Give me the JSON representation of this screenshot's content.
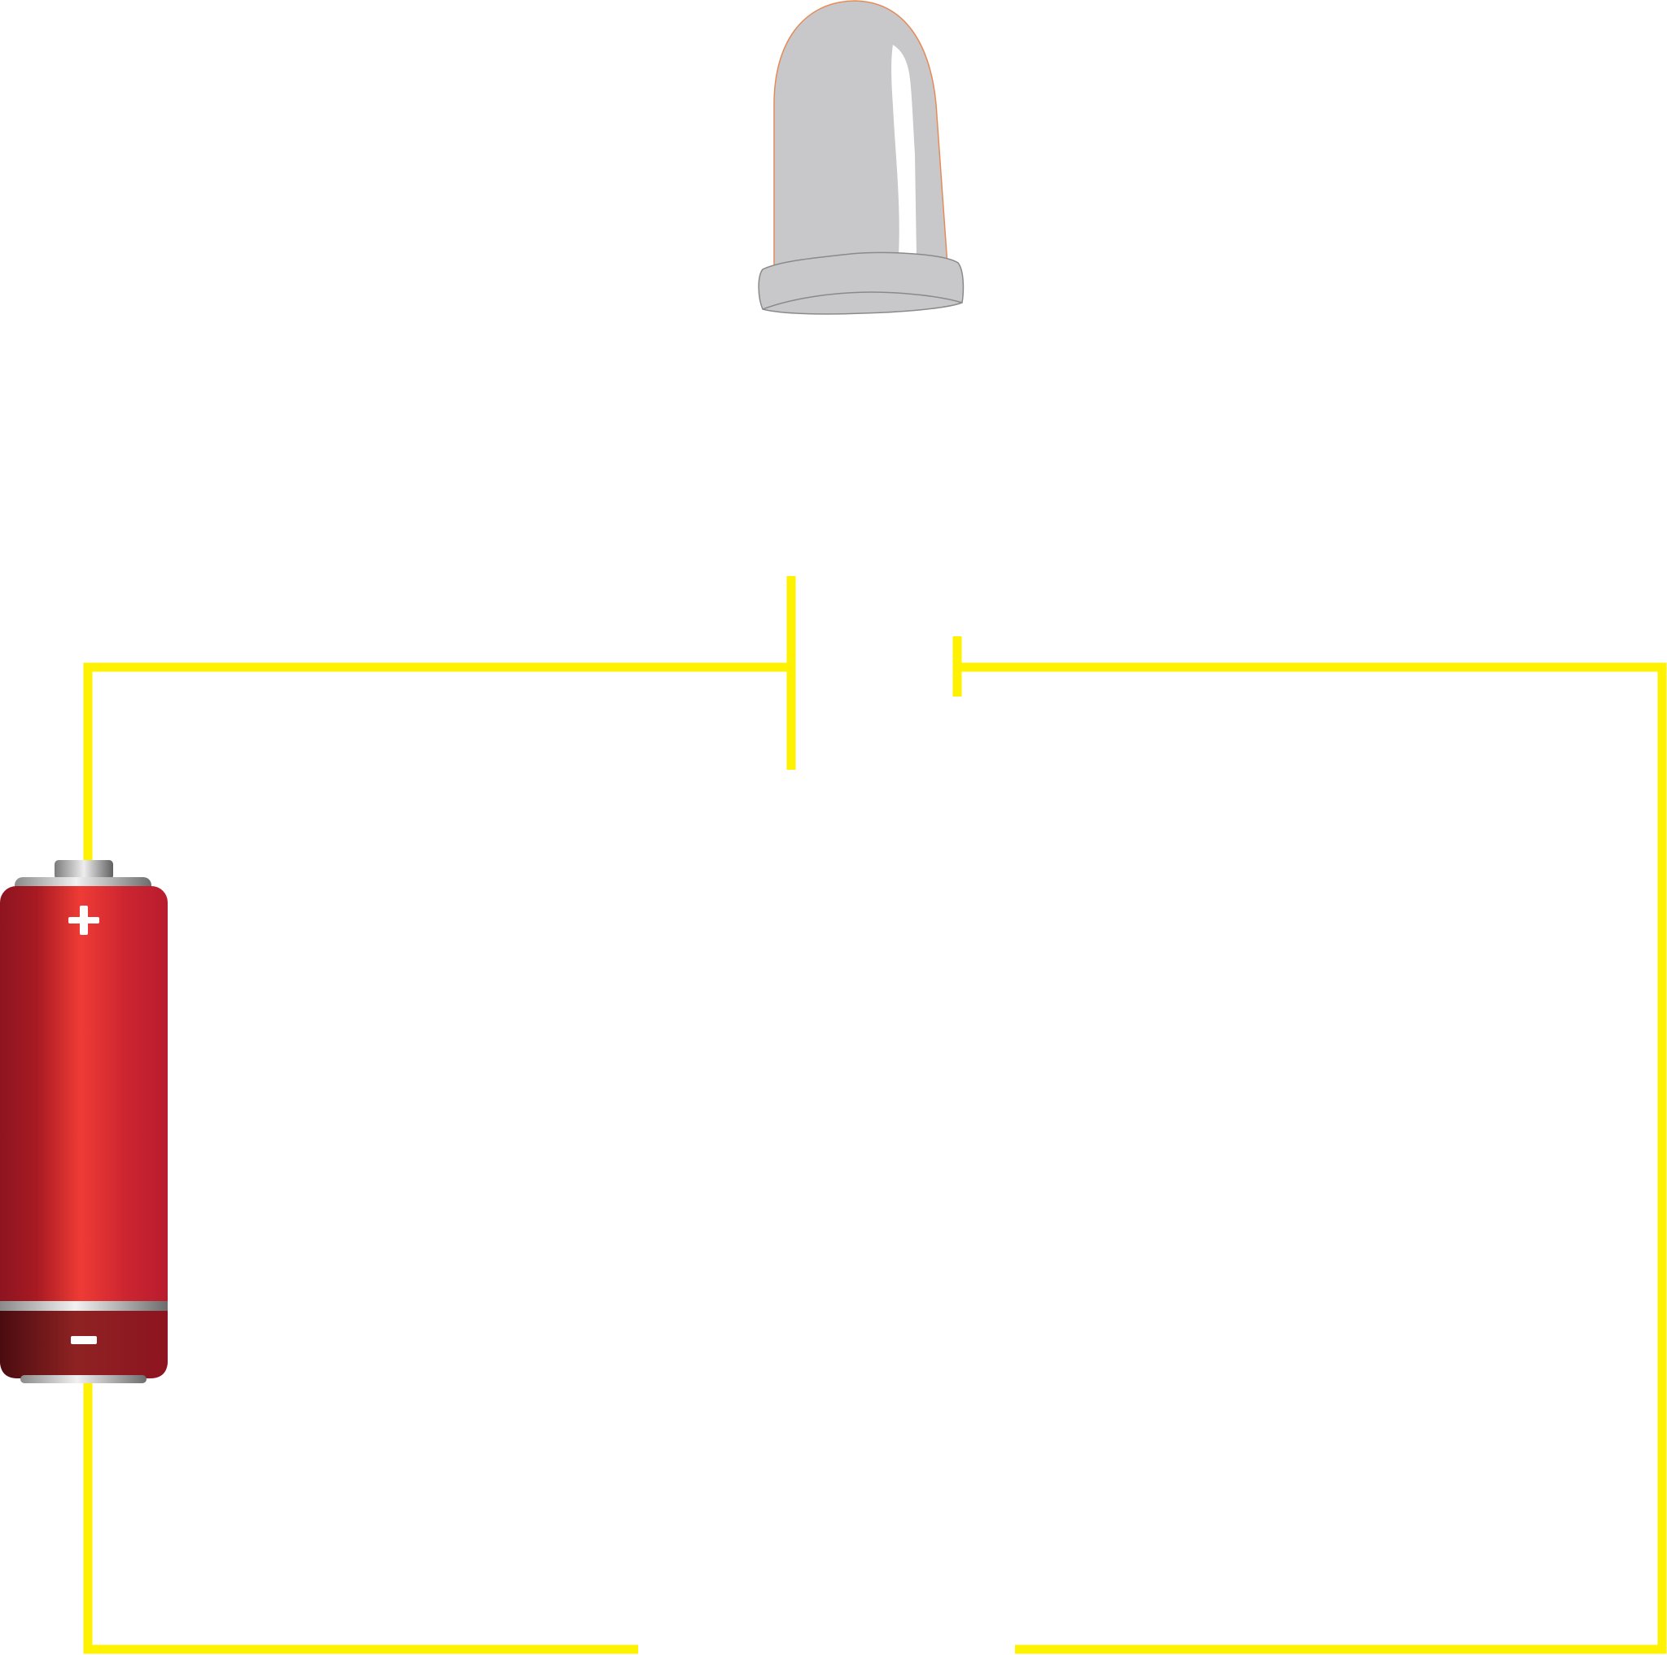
{
  "diagram": {
    "type": "circuit",
    "components": [
      {
        "id": "led",
        "kind": "led-bulb"
      },
      {
        "id": "battery",
        "kind": "battery",
        "terminals": [
          "+",
          "−"
        ]
      },
      {
        "id": "wire-gap-top",
        "kind": "open-contact"
      },
      {
        "id": "wire-gap-bottom",
        "kind": "open-gap"
      }
    ]
  },
  "battery": {
    "plus_symbol": "+",
    "minus_symbol": "−"
  },
  "colors": {
    "wire": "#fff200",
    "bulb_body": "#c8c8ca",
    "bulb_outline": "#e58b5a",
    "bulb_base_outline": "#8a8a8a",
    "battery_body_dark": "#8d1420",
    "battery_body_light": "#ef3b36",
    "battery_bottom_dark": "#4a0c10",
    "battery_cap_light": "#e6e6e6",
    "battery_cap_dark": "#6d6d6d"
  }
}
